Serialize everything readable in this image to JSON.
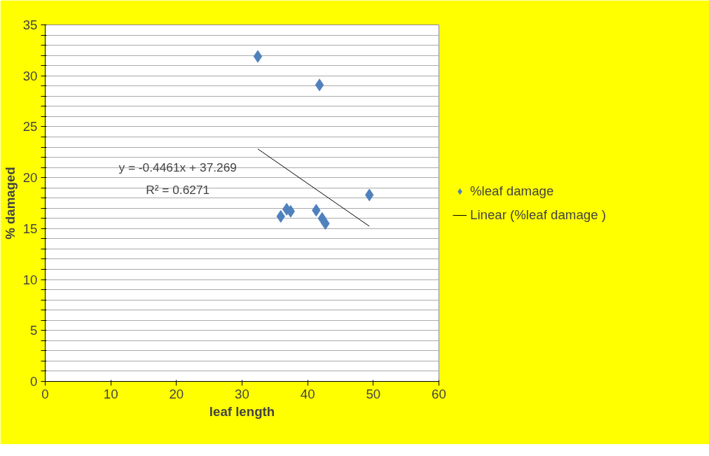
{
  "chart_data": {
    "type": "scatter",
    "xlabel": "leaf length",
    "ylabel": "% damaged",
    "xlim": [
      0,
      60
    ],
    "xticks": [
      0,
      10,
      20,
      30,
      40,
      50,
      60
    ],
    "ylim": [
      0,
      35
    ],
    "yticks": [
      0,
      {
        "value": 1,
        "label": null
      },
      {
        "value": 2,
        "label": null
      },
      {
        "value": 3,
        "label": null
      },
      {
        "value": 4,
        "label": null
      },
      5,
      {
        "value": 6,
        "label": null
      },
      {
        "value": 7,
        "label": null
      },
      {
        "value": 8,
        "label": null
      },
      {
        "value": 9,
        "label": null
      },
      10,
      {
        "value": 11,
        "label": null
      },
      {
        "value": 12,
        "label": null
      },
      {
        "value": 13,
        "label": null
      },
      {
        "value": 14,
        "label": null
      },
      15,
      {
        "value": 16,
        "label": null
      },
      {
        "value": 17,
        "label": null
      },
      {
        "value": 18,
        "label": null
      },
      {
        "value": 19,
        "label": null
      },
      20,
      {
        "value": 21,
        "label": null
      },
      {
        "value": 22,
        "label": null
      },
      {
        "value": 23,
        "label": null
      },
      {
        "value": 24,
        "label": null
      },
      25,
      {
        "value": 26,
        "label": null
      },
      {
        "value": 27,
        "label": null
      },
      {
        "value": 28,
        "label": null
      },
      {
        "value": 29,
        "label": null
      },
      30,
      {
        "value": 31,
        "label": null
      },
      {
        "value": 32,
        "label": null
      },
      {
        "value": 33,
        "label": null
      },
      {
        "value": 34,
        "label": null
      },
      35
    ],
    "grid": "y",
    "legend": "right",
    "marker": "diamond",
    "series": [
      {
        "name": "%leaf damage",
        "color": "#4f81bd",
        "x": [
          32.4,
          41.8,
          49.4,
          35.9,
          36.8,
          37.4,
          41.3,
          42.2,
          42.7
        ],
        "values": [
          31.9,
          29.1,
          18.3,
          16.2,
          16.9,
          16.7,
          16.8,
          16.0,
          15.5
        ]
      },
      {
        "name": "Linear (%leaf damage )",
        "type": "line",
        "marker": "none",
        "color": "#000000",
        "line_style": "solid",
        "x": [
          32.4,
          49.4
        ],
        "values": [
          22.82,
          15.23
        ]
      }
    ],
    "annotations": [
      "y = -0.4461x + 37.269",
      "R² = 0.6271"
    ]
  }
}
